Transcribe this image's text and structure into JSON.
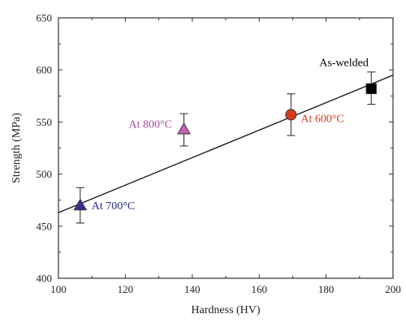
{
  "chart_data": {
    "type": "scatter",
    "xlabel": "Hardness (HV)",
    "ylabel": "Strength (MPa)",
    "xlim": [
      100,
      200
    ],
    "ylim": [
      400,
      650
    ],
    "xticks": [
      100,
      120,
      140,
      160,
      180,
      200
    ],
    "yticks": [
      400,
      450,
      500,
      550,
      600,
      650
    ],
    "points": [
      {
        "label": "As-welded",
        "x": 193.5,
        "y": 582,
        "err_low": 567,
        "err_high": 598,
        "marker": "square",
        "color": "#000000",
        "label_color": "#000000"
      },
      {
        "label": "At 600°C",
        "x": 169.5,
        "y": 557,
        "err_low": 537,
        "err_high": 577,
        "marker": "circle",
        "color": "#d83a1c",
        "label_color": "#d83a1c"
      },
      {
        "label": "At 800°C",
        "x": 137.5,
        "y": 543,
        "err_low": 527,
        "err_high": 558,
        "marker": "triangle",
        "color": "#c862b4",
        "label_color": "#b04a9d"
      },
      {
        "label": "At 700°C",
        "x": 106.5,
        "y": 470,
        "err_low": 453,
        "err_high": 487,
        "marker": "triangle",
        "color": "#3a2f8f",
        "label_color": "#2f2a8a"
      }
    ],
    "fit_line": {
      "x": [
        100,
        200
      ],
      "y": [
        463,
        595
      ]
    }
  }
}
